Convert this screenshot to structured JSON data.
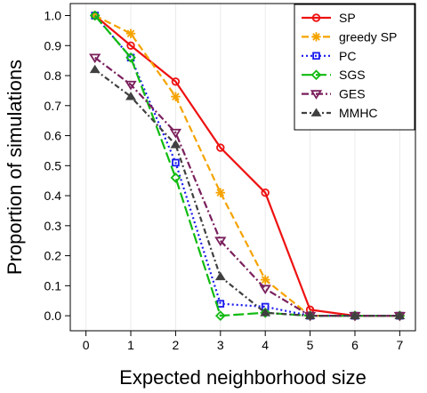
{
  "chart_data": {
    "type": "line",
    "xlabel": "Expected neighborhood size",
    "ylabel": "Proportion of simulations",
    "xlim": [
      -0.35,
      7.35
    ],
    "ylim": [
      -0.05,
      1.04
    ],
    "x_ticks": [
      0,
      1,
      2,
      3,
      4,
      5,
      6,
      7
    ],
    "y_ticks": [
      0.0,
      0.1,
      0.2,
      0.3,
      0.4,
      0.5,
      0.6,
      0.7,
      0.8,
      0.9,
      1.0
    ],
    "y_tick_labels": [
      "0.0",
      "0.1",
      "0.2",
      "0.3",
      "0.4",
      "0.5",
      "0.6",
      "0.7",
      "0.8",
      "0.9",
      "1.0"
    ],
    "grid": "vertical",
    "legend_position": "top-right",
    "x": [
      0.2,
      1,
      2,
      3,
      4,
      5,
      6,
      7
    ],
    "series": [
      {
        "name": "SP",
        "values": [
          1.0,
          0.9,
          0.78,
          0.56,
          0.41,
          0.02,
          0.0,
          0.0
        ],
        "color": "#ee1111",
        "marker": "circle",
        "dash": "solid"
      },
      {
        "name": "greedy SP",
        "values": [
          1.0,
          0.94,
          0.73,
          0.41,
          0.12,
          0.0,
          0.0,
          0.0
        ],
        "color": "#f5a300",
        "marker": "star",
        "dash": "dashed"
      },
      {
        "name": "PC",
        "values": [
          1.0,
          0.86,
          0.51,
          0.04,
          0.03,
          0.0,
          0.0,
          0.0
        ],
        "color": "#1a1aee",
        "marker": "square",
        "dash": "dotted"
      },
      {
        "name": "SGS",
        "values": [
          1.0,
          0.86,
          0.46,
          0.0,
          0.01,
          0.0,
          0.0,
          0.0
        ],
        "color": "#11bb11",
        "marker": "diamond",
        "dash": "longdash"
      },
      {
        "name": "GES",
        "values": [
          0.86,
          0.77,
          0.61,
          0.25,
          0.09,
          0.0,
          0.0,
          0.0
        ],
        "color": "#7a1f5c",
        "marker": "triangle-down",
        "dash": "dashdot"
      },
      {
        "name": "MMHC",
        "values": [
          0.82,
          0.73,
          0.57,
          0.13,
          0.01,
          0.0,
          0.0,
          0.0
        ],
        "color": "#404040",
        "marker": "triangle-up",
        "dash": "dashdot2"
      }
    ]
  }
}
